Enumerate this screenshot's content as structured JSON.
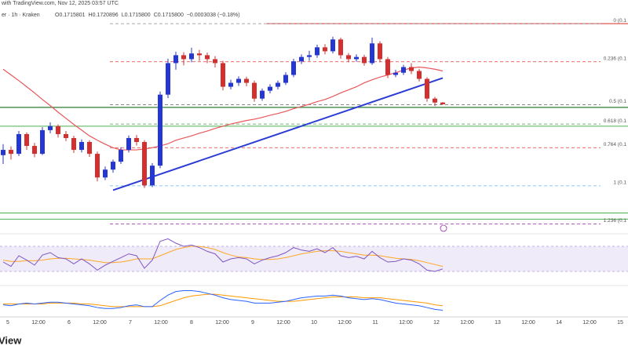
{
  "chart_data": {
    "type": "candlestick",
    "header": "with TradingView.com, Nov 12, 2025 03:57 UTC",
    "symbol": "er · 1h · Kraken",
    "ohlc_text": [
      "O0.1715801",
      "H0.1720896",
      "L0.1715800",
      "C0.1715800",
      "−0.0003038 (−0.18%)"
    ],
    "brand": "View",
    "x_axis_labels": [
      "5",
      "12:00",
      "6",
      "12:00",
      "7",
      "12:00",
      "8",
      "12:00",
      "9",
      "12:00",
      "10",
      "12:00",
      "11",
      "12:00",
      "12",
      "12:00",
      "13",
      "12:00",
      "14",
      "12:00",
      "15"
    ],
    "ylim": [
      0.1417,
      0.1954
    ],
    "up_color": "#2436d4",
    "down_color": "#d32f2f",
    "open": [
      0.16,
      0.1612,
      0.1603,
      0.1648,
      0.1621,
      0.1603,
      0.1657,
      0.1666,
      0.1648,
      0.1639,
      0.1612,
      0.163,
      0.1603,
      0.1549,
      0.1567,
      0.1585,
      0.1612,
      0.1639,
      0.163,
      0.1531,
      0.1576,
      0.1738,
      0.181,
      0.1828,
      0.1819,
      0.1832,
      0.1828,
      0.1819,
      0.181,
      0.1756,
      0.1765,
      0.1774,
      0.1765,
      0.1729,
      0.1747,
      0.1756,
      0.1765,
      0.1783,
      0.1814,
      0.1824,
      0.1828,
      0.1846,
      0.1837,
      0.1864,
      0.1828,
      0.1819,
      0.1824,
      0.181,
      0.1855,
      0.1819,
      0.1783,
      0.1788,
      0.1801,
      0.1792,
      0.1774,
      0.1729,
      0.172
    ],
    "high": [
      0.1625,
      0.162,
      0.1655,
      0.1652,
      0.1628,
      0.1664,
      0.1675,
      0.167,
      0.1655,
      0.1644,
      0.1636,
      0.1634,
      0.1608,
      0.1574,
      0.159,
      0.1618,
      0.1645,
      0.1646,
      0.1634,
      0.1582,
      0.1745,
      0.182,
      0.1836,
      0.1835,
      0.1845,
      0.184,
      0.1834,
      0.1826,
      0.1815,
      0.1772,
      0.178,
      0.1779,
      0.177,
      0.1752,
      0.1762,
      0.177,
      0.1789,
      0.182,
      0.183,
      0.1838,
      0.1852,
      0.1853,
      0.187,
      0.1868,
      0.1833,
      0.183,
      0.1829,
      0.1868,
      0.186,
      0.1824,
      0.1795,
      0.1806,
      0.181,
      0.1797,
      0.1778,
      0.1733,
      0.1721
    ],
    "low": [
      0.158,
      0.159,
      0.1598,
      0.1612,
      0.1595,
      0.16,
      0.165,
      0.164,
      0.1632,
      0.1605,
      0.1606,
      0.1596,
      0.154,
      0.1543,
      0.156,
      0.158,
      0.1606,
      0.1622,
      0.1525,
      0.1527,
      0.157,
      0.173,
      0.1795,
      0.1805,
      0.1812,
      0.1815,
      0.181,
      0.18,
      0.1748,
      0.175,
      0.1758,
      0.1757,
      0.1722,
      0.1724,
      0.1741,
      0.175,
      0.176,
      0.1778,
      0.1808,
      0.1815,
      0.1822,
      0.183,
      0.1832,
      0.182,
      0.1812,
      0.1813,
      0.1804,
      0.1806,
      0.1812,
      0.1776,
      0.1778,
      0.1783,
      0.1785,
      0.1768,
      0.1722,
      0.1712,
      0.1716
    ],
    "close": [
      0.1612,
      0.1603,
      0.1648,
      0.1621,
      0.1603,
      0.1657,
      0.1666,
      0.1648,
      0.1639,
      0.1612,
      0.163,
      0.1603,
      0.1549,
      0.1567,
      0.1585,
      0.1612,
      0.1639,
      0.163,
      0.1531,
      0.1576,
      0.1738,
      0.181,
      0.1828,
      0.1819,
      0.1832,
      0.1828,
      0.1819,
      0.181,
      0.1756,
      0.1765,
      0.1774,
      0.1765,
      0.1729,
      0.1747,
      0.1756,
      0.1765,
      0.1783,
      0.1814,
      0.1824,
      0.1828,
      0.1846,
      0.1837,
      0.1864,
      0.1828,
      0.1819,
      0.1824,
      0.181,
      0.1855,
      0.1819,
      0.1783,
      0.1788,
      0.1801,
      0.1792,
      0.1774,
      0.1729,
      0.172,
      0.1716
    ],
    "moving_average": {
      "color": "#e8575a",
      "values": [
        0.1796,
        0.1783,
        0.177,
        0.1756,
        0.1742,
        0.1727,
        0.1713,
        0.1698,
        0.1684,
        0.167,
        0.1657,
        0.1644,
        0.1634,
        0.1625,
        0.1617,
        0.1612,
        0.1612,
        0.1612,
        0.1614,
        0.1617,
        0.1621,
        0.1626,
        0.1634,
        0.1639,
        0.1644,
        0.165,
        0.1655,
        0.1661,
        0.1666,
        0.1671,
        0.1675,
        0.1679,
        0.1682,
        0.1686,
        0.1691,
        0.1695,
        0.17,
        0.1706,
        0.1711,
        0.1716,
        0.1722,
        0.1727,
        0.1734,
        0.1742,
        0.1749,
        0.1756,
        0.1765,
        0.1772,
        0.1778,
        0.1783,
        0.1788,
        0.1794,
        0.1799,
        0.1801,
        0.1799,
        0.1796,
        0.1792
      ]
    },
    "trendline": {
      "color": "#2a3bd6",
      "x": [
        14,
        56
      ],
      "values": [
        0.152,
        0.1776
      ]
    },
    "fib_levels": [
      {
        "label": "0 (0.1",
        "value": 0.19,
        "color": "#9e9e9e"
      },
      {
        "label": "0.236 (0.1",
        "value": 0.1813,
        "color": "#e53935"
      },
      {
        "label": "0.5 (0.1",
        "value": 0.1715,
        "color": "#616161"
      },
      {
        "label": "0.618 (0.1",
        "value": 0.1671,
        "color": "#43a047"
      },
      {
        "label": "0.764 (0.1",
        "value": 0.1617,
        "color": "#e53935"
      },
      {
        "label": "1 (0.1",
        "value": 0.153,
        "color": "#64b5f6"
      },
      {
        "label": "1.236 (0.1",
        "value": 0.1443,
        "color": "#9c27b0"
      }
    ],
    "hlines": [
      {
        "value": 0.19,
        "color": "#d32f2f"
      },
      {
        "value": 0.1709,
        "color": "#2e7d32"
      },
      {
        "value": 0.1666,
        "color": "#4caf50"
      },
      {
        "value": 0.1468,
        "color": "#4caf50"
      },
      {
        "value": 0.1454,
        "color": "#4caf50"
      }
    ],
    "rsi": {
      "ylim": [
        0,
        100
      ],
      "bands": [
        30,
        70
      ],
      "color": "#7e57c2",
      "ma_color": "#ffa726",
      "values": [
        45,
        38,
        55,
        48,
        40,
        56,
        60,
        52,
        50,
        42,
        50,
        42,
        32,
        40,
        46,
        52,
        58,
        55,
        35,
        48,
        78,
        82,
        75,
        70,
        72,
        68,
        62,
        58,
        45,
        50,
        52,
        50,
        42,
        48,
        52,
        55,
        60,
        68,
        64,
        62,
        66,
        60,
        68,
        55,
        52,
        54,
        50,
        62,
        52,
        45,
        46,
        50,
        48,
        42,
        32,
        30,
        34
      ],
      "ma": [
        48,
        46,
        46,
        47,
        47,
        48,
        50,
        51,
        51,
        50,
        49,
        48,
        46,
        44,
        44,
        45,
        47,
        50,
        50,
        50,
        55,
        60,
        65,
        68,
        70,
        70,
        68,
        65,
        60,
        56,
        53,
        52,
        50,
        49,
        49,
        50,
        52,
        55,
        58,
        60,
        62,
        63,
        63,
        62,
        60,
        58,
        56,
        56,
        55,
        53,
        51,
        50,
        49,
        47,
        44,
        41,
        38
      ]
    },
    "macd": {
      "ylim": [
        -0.001,
        0.002
      ],
      "color": "#2962ff",
      "signal_color": "#ff9800",
      "values": [
        0.0,
        -0.0001,
        0.0001,
        0.0002,
        0.0001,
        0.0002,
        0.0003,
        0.0003,
        0.0002,
        0.0001,
        0.0,
        -0.0001,
        -0.0003,
        -0.0004,
        -0.0004,
        -0.0003,
        -0.0001,
        0.0,
        -0.0002,
        -0.0002,
        0.0005,
        0.0011,
        0.0015,
        0.0016,
        0.0016,
        0.0015,
        0.0013,
        0.0011,
        0.0008,
        0.0006,
        0.0005,
        0.0004,
        0.0002,
        0.0002,
        0.0002,
        0.0003,
        0.0004,
        0.0006,
        0.0008,
        0.0009,
        0.001,
        0.001,
        0.0011,
        0.001,
        0.0008,
        0.0007,
        0.0006,
        0.0007,
        0.0006,
        0.0004,
        0.0002,
        0.0001,
        0.0,
        -0.0001,
        -0.0003,
        -0.0005,
        -0.0006
      ],
      "signal": [
        0.0001,
        0.0001,
        0.0001,
        0.0001,
        0.0001,
        0.0001,
        0.0002,
        0.0002,
        0.0002,
        0.0002,
        0.0001,
        0.0001,
        0.0,
        -0.0001,
        -0.0002,
        -0.0002,
        -0.0002,
        -0.0002,
        -0.0002,
        -0.0002,
        -0.0001,
        0.0002,
        0.0005,
        0.0008,
        0.001,
        0.0011,
        0.0012,
        0.0012,
        0.0011,
        0.001,
        0.0009,
        0.0008,
        0.0007,
        0.0006,
        0.0005,
        0.0004,
        0.0004,
        0.0004,
        0.0005,
        0.0006,
        0.0007,
        0.0008,
        0.0009,
        0.0009,
        0.0009,
        0.0009,
        0.0008,
        0.0008,
        0.0008,
        0.0007,
        0.0006,
        0.0005,
        0.0004,
        0.0003,
        0.0002,
        0.0,
        -0.0001
      ]
    }
  }
}
